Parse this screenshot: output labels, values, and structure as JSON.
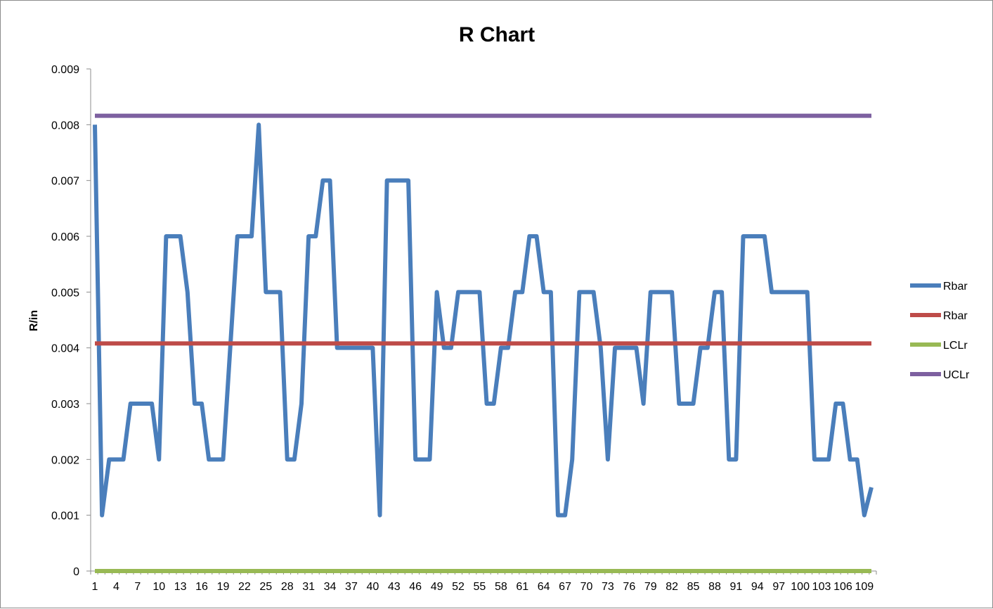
{
  "chart_data": {
    "type": "line",
    "title": "R Chart",
    "xlabel": "",
    "ylabel": "R/in",
    "x": [
      1,
      2,
      3,
      4,
      5,
      6,
      7,
      8,
      9,
      10,
      11,
      12,
      13,
      14,
      15,
      16,
      17,
      18,
      19,
      20,
      21,
      22,
      23,
      24,
      25,
      26,
      27,
      28,
      29,
      30,
      31,
      32,
      33,
      34,
      35,
      36,
      37,
      38,
      39,
      40,
      41,
      42,
      43,
      44,
      45,
      46,
      47,
      48,
      49,
      50,
      51,
      52,
      53,
      54,
      55,
      56,
      57,
      58,
      59,
      60,
      61,
      62,
      63,
      64,
      65,
      66,
      67,
      68,
      69,
      70,
      71,
      72,
      73,
      74,
      75,
      76,
      77,
      78,
      79,
      80,
      81,
      82,
      83,
      84,
      85,
      86,
      87,
      88,
      89,
      90,
      91,
      92,
      93,
      94,
      95,
      96,
      97,
      98,
      99,
      100,
      101,
      102,
      103,
      104,
      105,
      106,
      107,
      108,
      109,
      110
    ],
    "xticks": [
      "1",
      "4",
      "7",
      "10",
      "13",
      "16",
      "19",
      "22",
      "25",
      "28",
      "31",
      "34",
      "37",
      "40",
      "43",
      "46",
      "49",
      "52",
      "55",
      "58",
      "61",
      "64",
      "67",
      "70",
      "73",
      "76",
      "79",
      "82",
      "85",
      "88",
      "91",
      "94",
      "97",
      "100",
      "103",
      "106",
      "109"
    ],
    "ylim": [
      0,
      0.009
    ],
    "yticks": [
      "0",
      "0.001",
      "0.002",
      "0.003",
      "0.004",
      "0.005",
      "0.006",
      "0.007",
      "0.008",
      "0.009"
    ],
    "grid": false,
    "legend_position": "right",
    "series": [
      {
        "name": "Rbar",
        "color": "#4a7ebb",
        "values": [
          0.008,
          0.001,
          0.002,
          0.002,
          0.002,
          0.003,
          0.003,
          0.003,
          0.003,
          0.002,
          0.006,
          0.006,
          0.006,
          0.005,
          0.003,
          0.003,
          0.002,
          0.002,
          0.002,
          0.004,
          0.006,
          0.006,
          0.006,
          0.008,
          0.005,
          0.005,
          0.005,
          0.002,
          0.002,
          0.003,
          0.006,
          0.006,
          0.007,
          0.007,
          0.004,
          0.004,
          0.004,
          0.004,
          0.004,
          0.004,
          0.001,
          0.007,
          0.007,
          0.007,
          0.007,
          0.002,
          0.002,
          0.002,
          0.005,
          0.004,
          0.004,
          0.005,
          0.005,
          0.005,
          0.005,
          0.003,
          0.003,
          0.004,
          0.004,
          0.005,
          0.005,
          0.006,
          0.006,
          0.005,
          0.005,
          0.001,
          0.001,
          0.002,
          0.005,
          0.005,
          0.005,
          0.004,
          0.002,
          0.004,
          0.004,
          0.004,
          0.004,
          0.003,
          0.005,
          0.005,
          0.005,
          0.005,
          0.003,
          0.003,
          0.003,
          0.004,
          0.004,
          0.005,
          0.005,
          0.002,
          0.002,
          0.006,
          0.006,
          0.006,
          0.006,
          0.005,
          0.005,
          0.005,
          0.005,
          0.005,
          0.005,
          0.002,
          0.002,
          0.002,
          0.003,
          0.003,
          0.002,
          0.002,
          0.001,
          0.0015
        ]
      },
      {
        "name": "Rbar",
        "color": "#be4b48",
        "constant": 0.00408
      },
      {
        "name": "LCLr",
        "color": "#98b954",
        "constant": 0
      },
      {
        "name": "UCLr",
        "color": "#7d60a0",
        "constant": 0.00816
      }
    ]
  }
}
